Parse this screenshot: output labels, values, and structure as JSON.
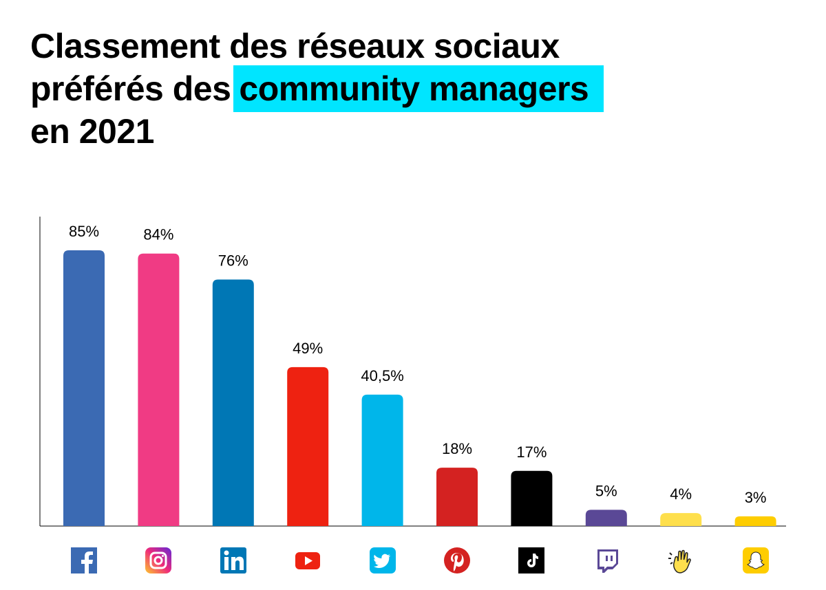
{
  "title": {
    "line1": "Classement des réseaux sociaux",
    "line2_prefix": "préférés des",
    "line2_highlight": "community managers",
    "line3": "en 2021"
  },
  "colors": {
    "highlight": "#00e5ff"
  },
  "chart_data": {
    "type": "bar",
    "title": "Classement des réseaux sociaux préférés des community managers en 2021",
    "categories": [
      "Facebook",
      "Instagram",
      "LinkedIn",
      "YouTube",
      "Twitter",
      "Pinterest",
      "TikTok",
      "Twitch",
      "Clubhouse",
      "Snapchat"
    ],
    "values": [
      85,
      84,
      76,
      49,
      40.5,
      18,
      17,
      5,
      4,
      3
    ],
    "labels": [
      "85%",
      "84%",
      "76%",
      "49%",
      "40,5%",
      "18%",
      "17%",
      "5%",
      "4%",
      "3%"
    ],
    "colors": [
      "#3b6ab3",
      "#f03b84",
      "#0077b5",
      "#ee2211",
      "#00b6ea",
      "#d42221",
      "#000000",
      "#5a4896",
      "#fedf4c",
      "#fecd00"
    ],
    "icons": [
      "facebook-icon",
      "instagram-icon",
      "linkedin-icon",
      "youtube-icon",
      "twitter-icon",
      "pinterest-icon",
      "tiktok-icon",
      "twitch-icon",
      "clubhouse-icon",
      "snapchat-icon"
    ],
    "ylim": [
      0,
      95
    ],
    "xlabel": "",
    "ylabel": "",
    "grid": false
  }
}
